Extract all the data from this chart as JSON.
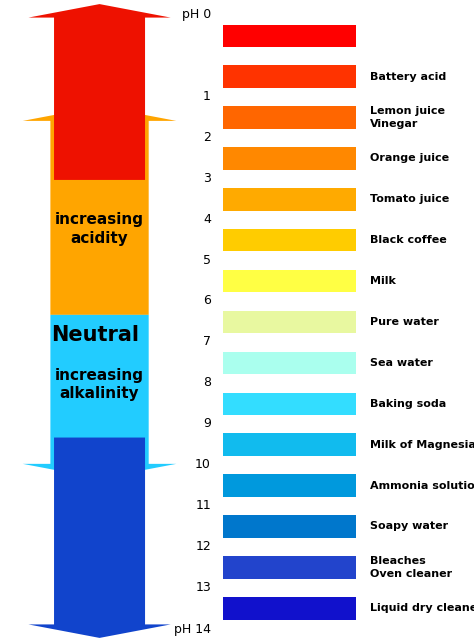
{
  "background_color": "#ffffff",
  "bar_colors": [
    "#FF0000",
    "#FF3300",
    "#FF6600",
    "#FF8800",
    "#FFAA00",
    "#FFCC00",
    "#FFFF44",
    "#E8F8A0",
    "#AAFFEE",
    "#33DDFF",
    "#11BBEE",
    "#0099DD",
    "#0077CC",
    "#2244CC",
    "#1111CC"
  ],
  "label_positions": {
    "0": null,
    "1": "Battery acid",
    "2": "Lemon juice\nVinegar",
    "3": "Orange juice",
    "4": "Tomato juice",
    "5": "Black coffee",
    "6": "Milk",
    "7": "Pure water",
    "8": "Sea water",
    "9": "Baking soda",
    "10": "Milk of Magnesia",
    "11": "Ammonia solution",
    "12": "Soapy water",
    "13": "Bleaches\nOven cleaner",
    "14": "Liquid dry cleaner"
  },
  "red_arrow_color": "#EE1100",
  "orange_arrow_color": "#FFA500",
  "cyan_arrow_color": "#22CCFF",
  "blue_arrow_color": "#1144CC",
  "acidity_text": "increasing\nacidity",
  "alkalinity_text": "increasing\nalkalinity",
  "neutral_text": "Neutral"
}
